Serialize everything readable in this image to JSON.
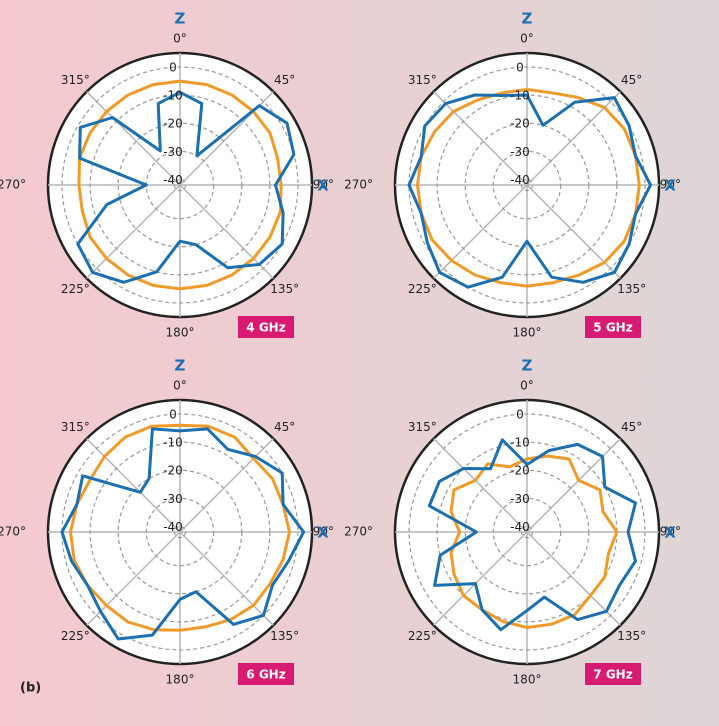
{
  "figure_label": "(b)",
  "chart_data": [
    {
      "type": "polar",
      "label": "4 GHz",
      "z_label": "Z",
      "x_label": "X",
      "theta": [
        0,
        15,
        30,
        45,
        60,
        75,
        90,
        105,
        120,
        135,
        150,
        165,
        180,
        195,
        210,
        225,
        240,
        255,
        270,
        285,
        300,
        315,
        330,
        345
      ],
      "rlim": [
        -42,
        5
      ],
      "rticks": [
        0,
        -10,
        -20,
        -30,
        -40
      ],
      "thetaticks": [
        {
          "value": 0,
          "label": "0°"
        },
        {
          "value": 45,
          "label": "45°"
        },
        {
          "value": 90,
          "label": "90°"
        },
        {
          "value": 135,
          "label": "135°"
        },
        {
          "value": 180,
          "label": "180°"
        },
        {
          "value": 225,
          "label": "225°"
        },
        {
          "value": 270,
          "label": "270°"
        },
        {
          "value": 315,
          "label": "315°"
        }
      ],
      "series": [
        {
          "color": "#f09a2a",
          "values": [
            -5,
            -5,
            -5,
            -5,
            -5,
            -6,
            -6,
            -5,
            -5,
            -5,
            -5,
            -5,
            -5,
            -5,
            -5,
            -5,
            -5,
            -6,
            -6,
            -5,
            -5,
            -5,
            -5,
            -5
          ]
        },
        {
          "color": "#1c6fb0",
          "values": [
            -9,
            -12,
            -30,
            -2,
            2,
            0,
            -8,
            -4,
            0,
            -2,
            -8,
            -20,
            -22,
            -10,
            -2,
            2,
            0,
            -15,
            -30,
            -5,
            -1,
            -8,
            -28,
            -12
          ]
        }
      ]
    },
    {
      "type": "polar",
      "label": "5 GHz",
      "z_label": "Z",
      "x_label": "X",
      "theta": [
        0,
        15,
        30,
        45,
        60,
        75,
        90,
        105,
        120,
        135,
        150,
        165,
        180,
        195,
        210,
        225,
        240,
        255,
        270,
        285,
        300,
        315,
        330,
        345
      ],
      "rlim": [
        -42,
        5
      ],
      "rticks": [
        0,
        -10,
        -20,
        -30,
        -40
      ],
      "thetaticks": [
        {
          "value": 0,
          "label": "0°"
        },
        {
          "value": 45,
          "label": "45°"
        },
        {
          "value": 90,
          "label": "90°"
        },
        {
          "value": 135,
          "label": "135°"
        },
        {
          "value": 180,
          "label": "180°"
        },
        {
          "value": 225,
          "label": "225°"
        },
        {
          "value": 270,
          "label": "270°"
        },
        {
          "value": 315,
          "label": "315°"
        }
      ],
      "series": [
        {
          "color": "#f09a2a",
          "values": [
            -8,
            -8,
            -6,
            -3,
            -2,
            -2,
            -2,
            -2,
            -2,
            -3,
            -5,
            -6,
            -6,
            -6,
            -5,
            -4,
            -3,
            -3,
            -3,
            -3,
            -4,
            -5,
            -7,
            -8
          ]
        },
        {
          "color": "#1c6fb0",
          "values": [
            -10,
            -20,
            -8,
            2,
            0,
            -2,
            2,
            -2,
            0,
            2,
            -2,
            -8,
            -22,
            -8,
            0,
            2,
            -1,
            -3,
            0,
            -3,
            0,
            -1,
            -5,
            -9
          ]
        }
      ]
    },
    {
      "type": "polar",
      "label": "6 GHz",
      "z_label": "Z",
      "x_label": "X",
      "theta": [
        0,
        15,
        30,
        45,
        60,
        75,
        90,
        105,
        120,
        135,
        150,
        165,
        180,
        195,
        210,
        225,
        240,
        255,
        270,
        285,
        300,
        315,
        330,
        345
      ],
      "rlim": [
        -42,
        5
      ],
      "rticks": [
        0,
        -10,
        -20,
        -30,
        -40
      ],
      "thetaticks": [
        {
          "value": 0,
          "label": "0°"
        },
        {
          "value": 45,
          "label": "45°"
        },
        {
          "value": 90,
          "label": "90°"
        },
        {
          "value": 135,
          "label": "135°"
        },
        {
          "value": 180,
          "label": "180°"
        },
        {
          "value": 225,
          "label": "225°"
        },
        {
          "value": 270,
          "label": "270°"
        },
        {
          "value": 315,
          "label": "315°"
        }
      ],
      "series": [
        {
          "color": "#f09a2a",
          "values": [
            -4,
            -3,
            -3,
            -5,
            -4,
            -4,
            -3,
            -4,
            -5,
            -5,
            -6,
            -7,
            -7,
            -6,
            -5,
            -5,
            -4,
            -3,
            -3,
            -4,
            -5,
            -4,
            -3,
            -3
          ]
        },
        {
          "color": "#1c6fb0",
          "values": [
            -6,
            -4,
            -8,
            -4,
            0,
            -4,
            2,
            -2,
            -4,
            0,
            -4,
            -20,
            -18,
            -4,
            2,
            -2,
            -4,
            -2,
            0,
            -4,
            -2,
            -22,
            -20,
            -4
          ]
        }
      ]
    },
    {
      "type": "polar",
      "label": "7 GHz",
      "z_label": "Z",
      "x_label": "X",
      "theta": [
        0,
        15,
        30,
        45,
        60,
        75,
        90,
        105,
        120,
        135,
        150,
        165,
        180,
        195,
        210,
        225,
        240,
        255,
        270,
        285,
        300,
        315,
        330,
        345
      ],
      "rlim": [
        -42,
        5
      ],
      "rticks": [
        0,
        -10,
        -20,
        -30,
        -40
      ],
      "thetaticks": [
        {
          "value": 0,
          "label": "0°"
        },
        {
          "value": 45,
          "label": "45°"
        },
        {
          "value": 90,
          "label": "90°"
        },
        {
          "value": 135,
          "label": "135°"
        },
        {
          "value": 180,
          "label": "180°"
        },
        {
          "value": 225,
          "label": "225°"
        },
        {
          "value": 270,
          "label": "270°"
        },
        {
          "value": 315,
          "label": "315°"
        }
      ],
      "series": [
        {
          "color": "#f09a2a",
          "values": [
            -16,
            -14,
            -12,
            -16,
            -12,
            -14,
            -10,
            -12,
            -10,
            -10,
            -8,
            -8,
            -8,
            -9,
            -10,
            -10,
            -12,
            -14,
            -18,
            -14,
            -12,
            -16,
            -14,
            -18
          ]
        },
        {
          "color": "#1c6fb0",
          "values": [
            -18,
            -12,
            -6,
            -4,
            -10,
            -2,
            -6,
            -2,
            -4,
            -2,
            -6,
            -18,
            -14,
            -6,
            -10,
            -16,
            -4,
            -10,
            -24,
            -6,
            -6,
            -10,
            -16,
            -8
          ]
        }
      ]
    }
  ]
}
